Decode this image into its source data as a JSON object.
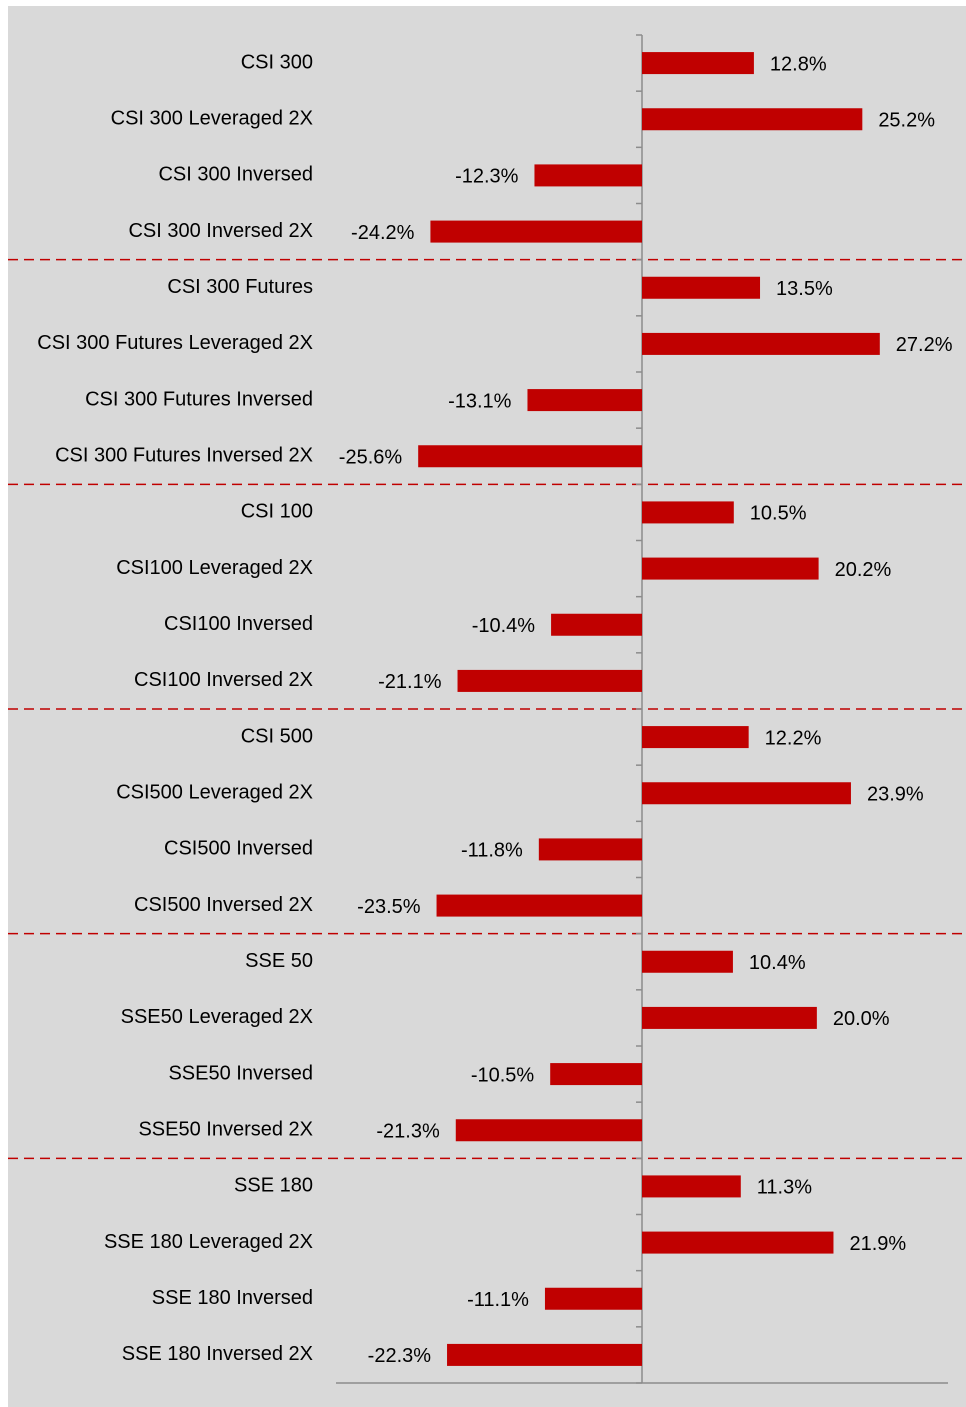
{
  "chart_data": {
    "type": "barh",
    "categories": [
      "CSI 300",
      "CSI 300 Leveraged 2X",
      "CSI 300 Inversed",
      "CSI 300 Inversed 2X",
      "CSI 300 Futures",
      "CSI 300 Futures Leveraged 2X",
      "CSI 300 Futures Inversed",
      "CSI 300 Futures Inversed 2X",
      "CSI 100",
      "CSI100 Leveraged 2X",
      "CSI100 Inversed",
      "CSI100 Inversed 2X",
      "CSI 500",
      "CSI500 Leveraged 2X",
      "CSI500 Inversed",
      "CSI500 Inversed 2X",
      "SSE 50",
      "SSE50 Leveraged 2X",
      "SSE50 Inversed",
      "SSE50 Inversed 2X",
      "SSE 180",
      "SSE 180 Leveraged 2X",
      "SSE 180 Inversed",
      "SSE 180 Inversed 2X"
    ],
    "values": [
      12.8,
      25.2,
      -12.3,
      -24.2,
      13.5,
      27.2,
      -13.1,
      -25.6,
      10.5,
      20.2,
      -10.4,
      -21.1,
      12.2,
      23.9,
      -11.8,
      -23.5,
      10.4,
      20.0,
      -10.5,
      -21.3,
      11.3,
      21.9,
      -11.1,
      -22.3
    ],
    "value_labels": [
      "12.8%",
      "25.2%",
      "-12.3%",
      "-24.2%",
      "13.5%",
      "27.2%",
      "-13.1%",
      "-25.6%",
      "10.5%",
      "20.2%",
      "-10.4%",
      "-21.1%",
      "12.2%",
      "23.9%",
      "-11.8%",
      "-23.5%",
      "10.4%",
      "20.0%",
      "-10.5%",
      "-21.3%",
      "11.3%",
      "21.9%",
      "-11.1%",
      "-22.3%"
    ],
    "color": "#c00000",
    "xlim": [
      -35,
      35
    ]
  }
}
